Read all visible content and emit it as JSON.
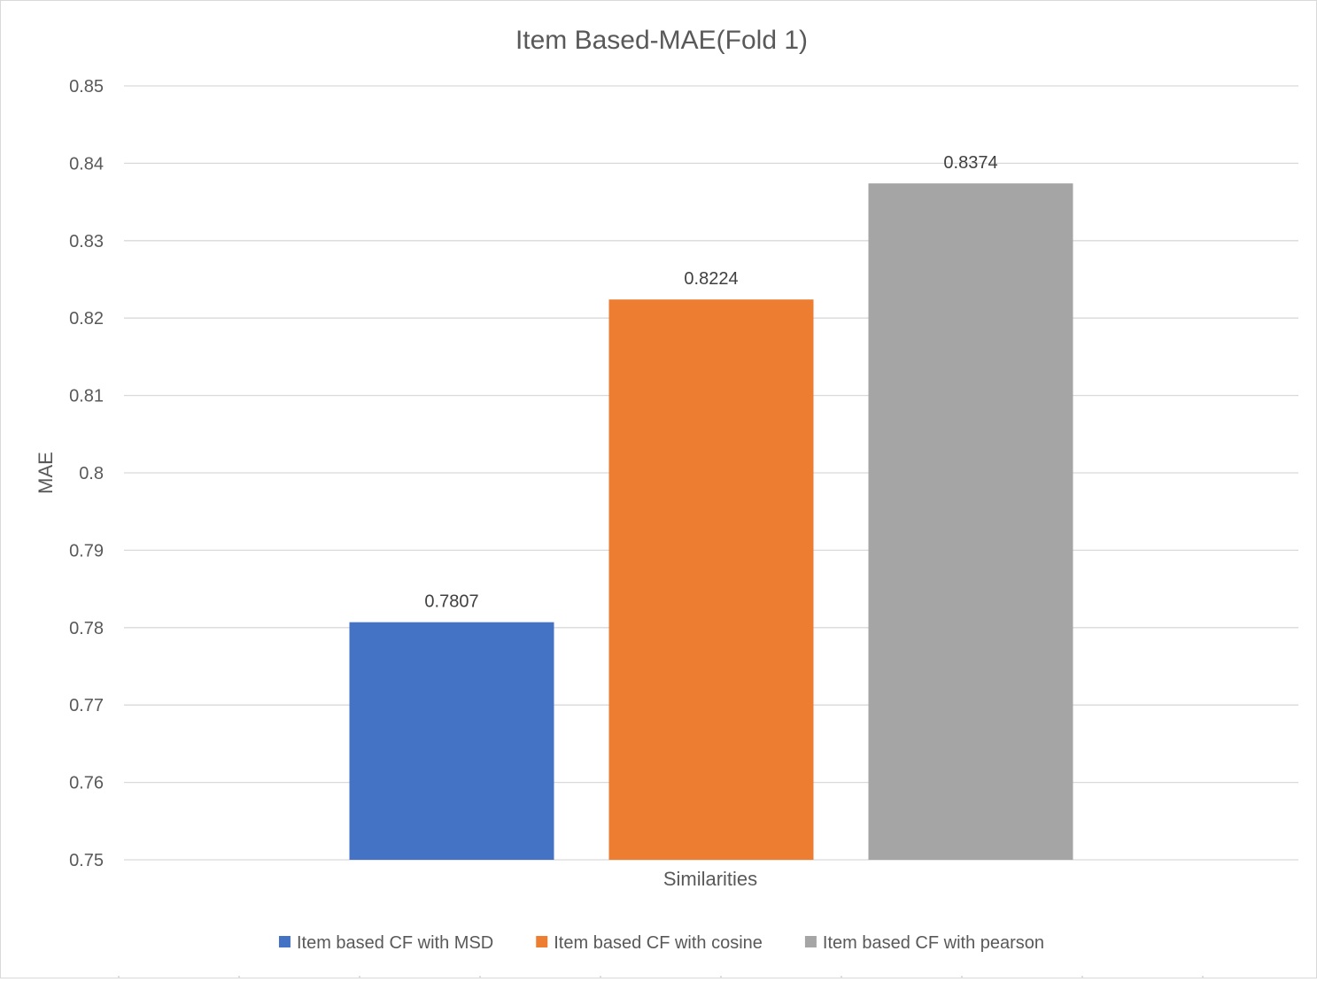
{
  "chart_data": {
    "type": "bar",
    "title": "Item Based-MAE(Fold 1)",
    "xlabel": "Similarities",
    "ylabel": "MAE",
    "categories": [
      "Similarities"
    ],
    "ylim": [
      0.75,
      0.85
    ],
    "ytick_step": 0.01,
    "yticks": [
      "0.75",
      "0.76",
      "0.77",
      "0.78",
      "0.79",
      "0.8",
      "0.81",
      "0.82",
      "0.83",
      "0.84",
      "0.85"
    ],
    "grid": true,
    "legend_position": "bottom",
    "series": [
      {
        "name": "Item based CF with MSD",
        "values": [
          0.7807
        ],
        "label": "0.7807",
        "color": "#4472C4"
      },
      {
        "name": "Item based CF with cosine",
        "values": [
          0.8224
        ],
        "label": "0.8224",
        "color": "#ED7D31"
      },
      {
        "name": "Item based CF with pearson",
        "values": [
          0.8374
        ],
        "label": "0.8374",
        "color": "#A5A5A5"
      }
    ]
  }
}
